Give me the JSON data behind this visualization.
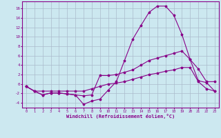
{
  "background_color": "#cce8f0",
  "grid_color": "#aabbcc",
  "line_color": "#880088",
  "marker": "*",
  "xlabel": "Windchill (Refroidissement éolien,°C)",
  "xlabel_color": "#880088",
  "tick_color": "#880088",
  "xlim": [
    -0.5,
    23.5
  ],
  "ylim": [
    -5.0,
    17.5
  ],
  "yticks": [
    -4,
    -2,
    0,
    2,
    4,
    6,
    8,
    10,
    12,
    14,
    16
  ],
  "xticks": [
    0,
    1,
    2,
    3,
    4,
    5,
    6,
    7,
    8,
    9,
    10,
    11,
    12,
    13,
    14,
    15,
    16,
    17,
    18,
    19,
    20,
    21,
    22,
    23
  ],
  "line1_x": [
    0,
    1,
    2,
    3,
    4,
    5,
    6,
    7,
    8,
    9,
    10,
    11,
    12,
    13,
    14,
    15,
    16,
    17,
    18,
    19,
    20,
    21,
    22,
    23
  ],
  "line1_y": [
    -0.5,
    -1.5,
    -2.3,
    -1.9,
    -1.9,
    -2.1,
    -2.3,
    -4.3,
    -3.6,
    -3.2,
    -1.3,
    0.5,
    5.0,
    9.5,
    12.4,
    15.2,
    16.5,
    16.5,
    14.6,
    10.5,
    5.2,
    3.2,
    0.5,
    0.5
  ],
  "line2_x": [
    0,
    1,
    2,
    3,
    4,
    5,
    6,
    7,
    8,
    9,
    10,
    11,
    12,
    13,
    14,
    15,
    16,
    17,
    18,
    19,
    20,
    21,
    22,
    23
  ],
  "line2_y": [
    -0.5,
    -1.5,
    -2.3,
    -1.9,
    -1.9,
    -2.1,
    -2.3,
    -2.5,
    -2.3,
    1.8,
    1.8,
    2.0,
    2.5,
    3.0,
    4.0,
    5.0,
    5.5,
    6.0,
    6.5,
    7.0,
    5.2,
    0.7,
    0.3,
    -1.5
  ],
  "line3_x": [
    0,
    1,
    2,
    3,
    4,
    5,
    6,
    7,
    8,
    9,
    10,
    11,
    12,
    13,
    14,
    15,
    16,
    17,
    18,
    19,
    20,
    21,
    22,
    23
  ],
  "line3_y": [
    -0.5,
    -1.5,
    -1.5,
    -1.5,
    -1.5,
    -1.5,
    -1.5,
    -1.5,
    -1.0,
    -0.5,
    0.0,
    0.2,
    0.5,
    1.0,
    1.5,
    2.0,
    2.3,
    2.7,
    3.0,
    3.5,
    3.5,
    0.5,
    -1.0,
    -1.5
  ],
  "figsize": [
    3.2,
    2.0
  ],
  "dpi": 100
}
